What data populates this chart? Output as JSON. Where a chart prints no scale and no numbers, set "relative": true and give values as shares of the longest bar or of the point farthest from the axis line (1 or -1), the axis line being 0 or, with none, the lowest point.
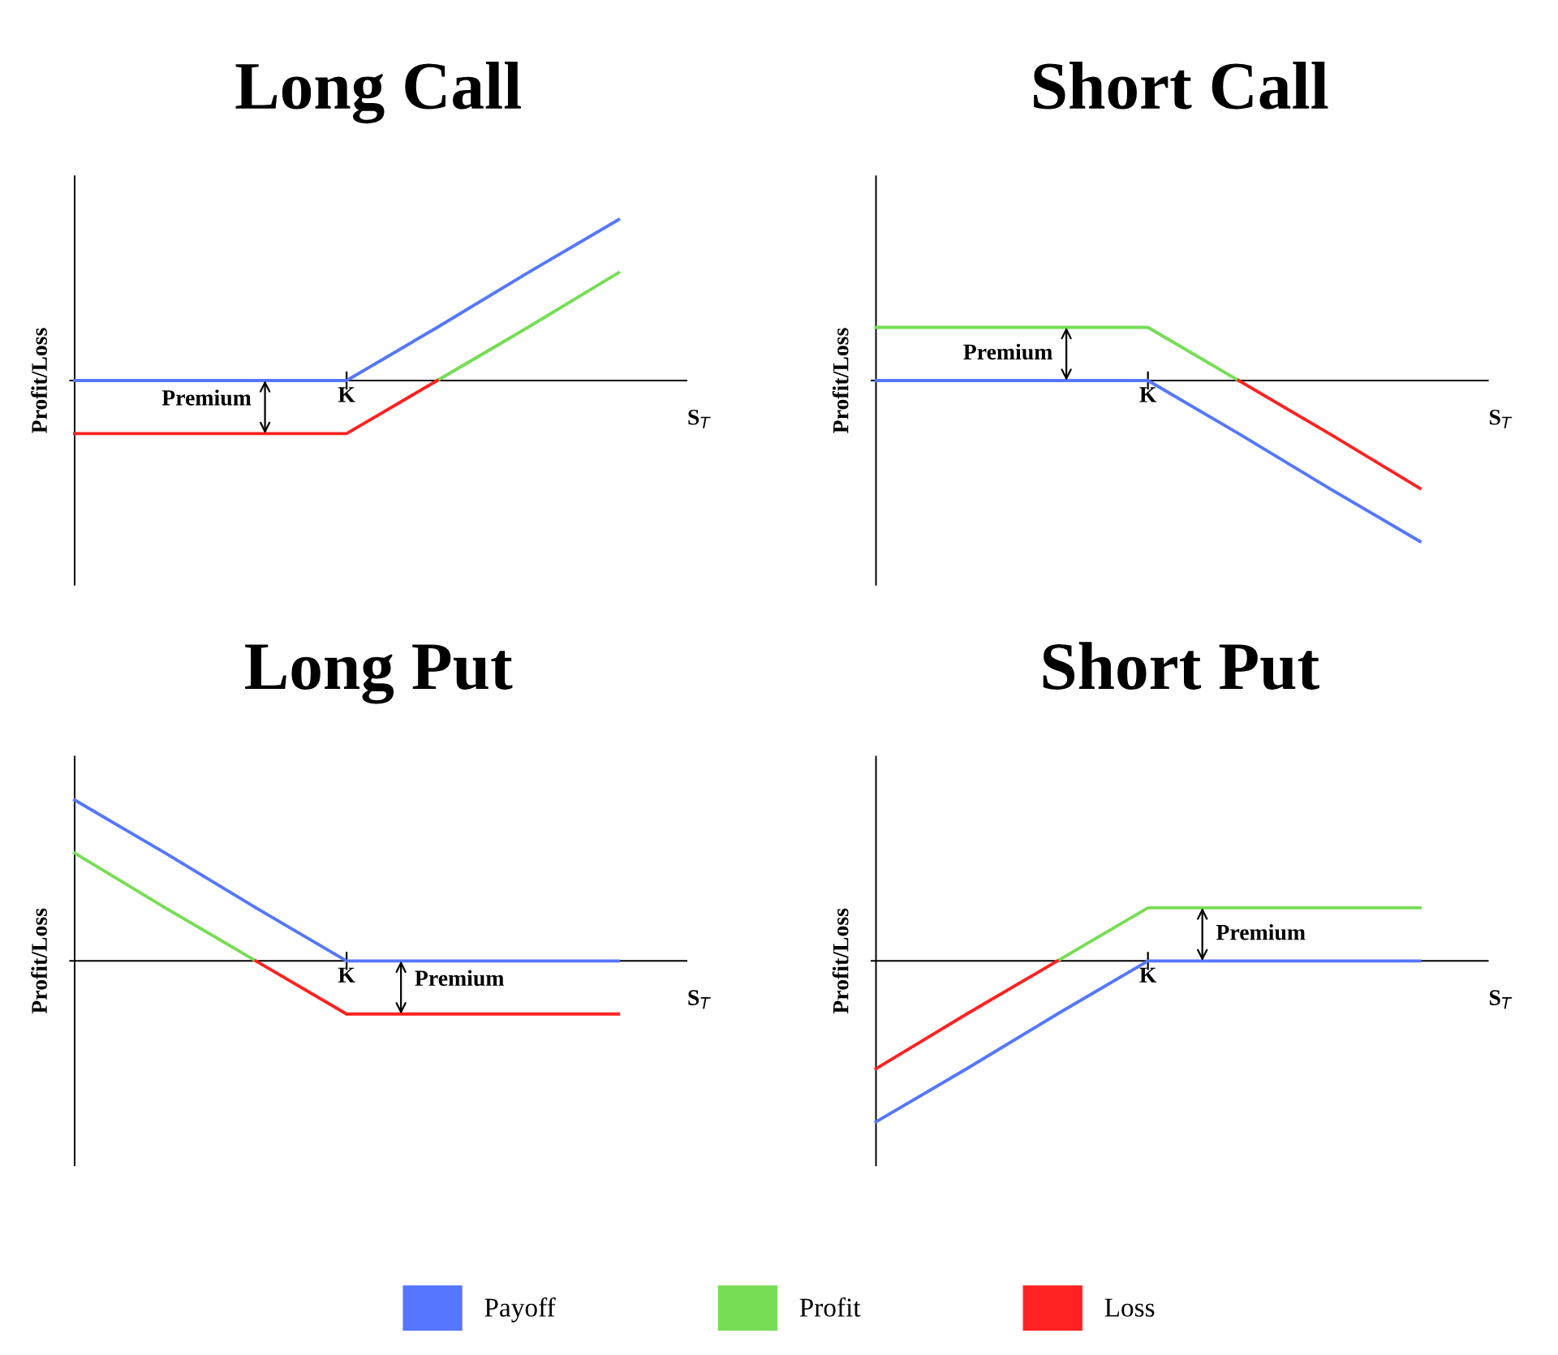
{
  "chart_data": [
    {
      "type": "line",
      "title": "Long Call",
      "xlabel": "S$_{T}$",
      "ylabel": "Profit/Loss",
      "relative": true,
      "legend": "bottom",
      "categories": [
        null,
        null,
        null,
        null,
        null,
        null,
        null
      ],
      "series": [
        {
          "name": "Payoff",
          "color": "#5577ff",
          "values": [
            0,
            0,
            0,
            0,
            0.33,
            0.67,
            1
          ]
        },
        {
          "name": "Profit",
          "color": "#77dd55",
          "values": [
            null,
            null,
            null,
            null,
            0,
            0.33,
            0.67
          ]
        },
        {
          "name": "Loss",
          "color": "#ff2222",
          "values": [
            -0.33,
            -0.33,
            -0.33,
            -0.33,
            0,
            null,
            null
          ]
        }
      ],
      "annotations": [
        {
          "text": "K",
          "y": 0
        },
        {
          "text": "Premium",
          "y": -0.33
        }
      ]
    },
    {
      "type": "line",
      "title": "Short Call",
      "xlabel": "S$_{T}$",
      "ylabel": "Profit/Loss",
      "relative": true,
      "legend": "bottom",
      "categories": [
        null,
        null,
        null,
        null,
        null,
        null,
        null
      ],
      "series": [
        {
          "color": "#5577ff",
          "values": [
            0,
            0,
            0,
            0,
            -0.33,
            -0.67,
            -1
          ]
        },
        {
          "color": "#77dd55",
          "values": [
            0.33,
            0.33,
            0.33,
            0.33,
            0,
            null,
            null
          ]
        },
        {
          "color": "#ff2222",
          "values": [
            null,
            null,
            null,
            null,
            0,
            -0.33,
            -0.67
          ]
        }
      ],
      "annotations": [
        {
          "text": "K",
          "y": 0
        },
        {
          "text": "Premium",
          "y": 0.33
        }
      ]
    },
    {
      "type": "line",
      "title": "Long Put",
      "xlabel": "S$_{T}$",
      "ylabel": "Profit/Loss",
      "relative": true,
      "legend": "bottom",
      "categories": [
        null,
        null,
        null,
        null,
        null,
        null,
        null
      ],
      "series": [
        {
          "color": "#5577ff",
          "values": [
            1,
            0.67,
            0.33,
            0,
            0,
            0,
            0
          ]
        },
        {
          "color": "#77dd55",
          "values": [
            0.67,
            0.33,
            0,
            null,
            null,
            null,
            null
          ]
        },
        {
          "color": "#ff2222",
          "values": [
            null,
            null,
            0,
            -0.33,
            -0.33,
            -0.33,
            -0.33
          ]
        }
      ],
      "annotations": [
        {
          "text": "K",
          "y": 0
        },
        {
          "text": "Premium",
          "y": -0.33
        }
      ]
    },
    {
      "type": "line",
      "title": "Short Put",
      "xlabel": "S$_{T}$",
      "ylabel": "Profit/Loss",
      "relative": true,
      "legend": "bottom",
      "categories": [
        null,
        null,
        null,
        null,
        null,
        null,
        null
      ],
      "series": [
        {
          "color": "#5577ff",
          "values": [
            -1,
            -0.67,
            -0.33,
            0,
            0,
            0,
            0
          ]
        },
        {
          "color": "#77dd55",
          "values": [
            null,
            null,
            0,
            0.33,
            0.33,
            0.33,
            0.33
          ]
        },
        {
          "color": "#ff2222",
          "values": [
            -0.67,
            -0.33,
            0,
            null,
            null,
            null,
            null
          ]
        }
      ],
      "annotations": [
        {
          "text": "K",
          "y": 0
        },
        {
          "text": "Premium",
          "y": 0.33
        }
      ]
    }
  ]
}
